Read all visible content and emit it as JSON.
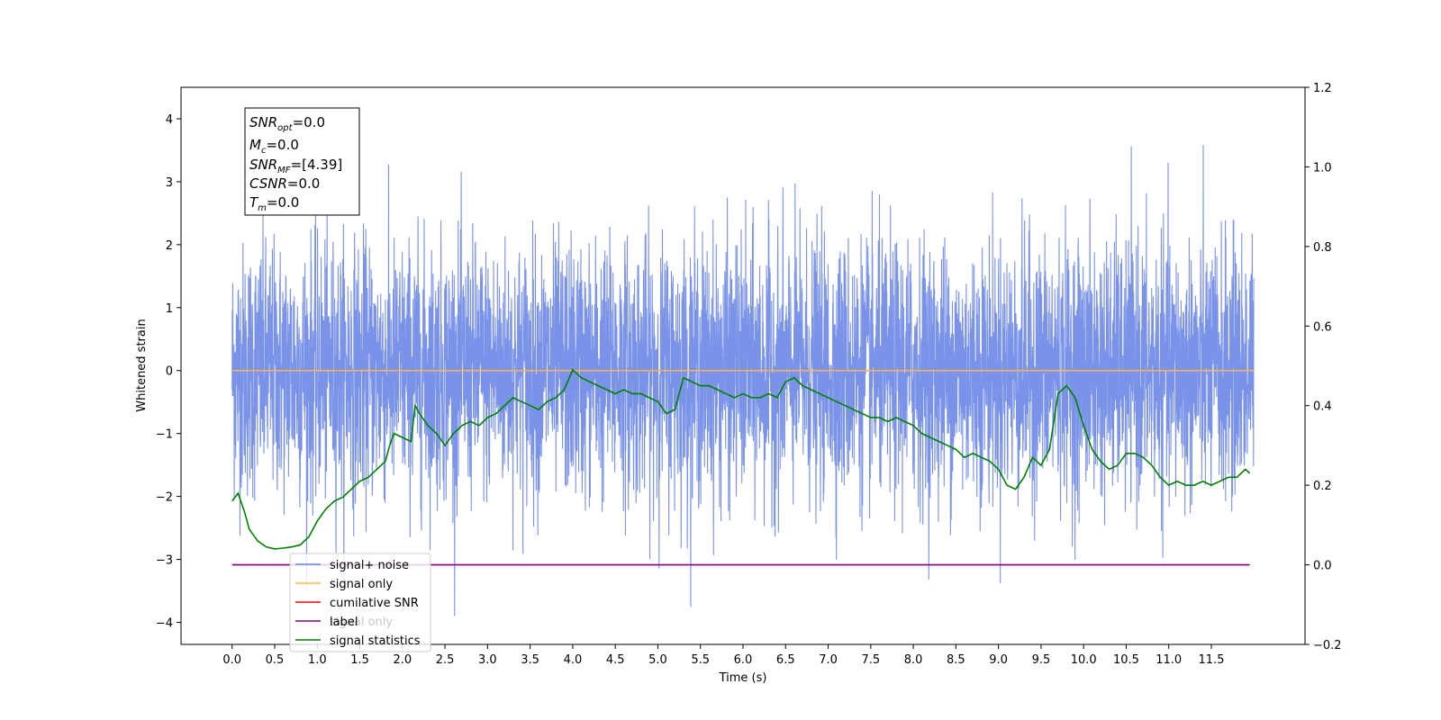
{
  "chart_data": {
    "type": "line",
    "xlabel": "Time (s)",
    "ylabel": "Whitened strain",
    "xlim": [
      -0.6,
      12.6
    ],
    "ylim": [
      -4.35,
      4.5
    ],
    "y2lim": [
      -0.2,
      1.2
    ],
    "x_ticks": [
      0.0,
      0.5,
      1.0,
      1.5,
      2.0,
      2.5,
      3.0,
      3.5,
      4.0,
      4.5,
      5.0,
      5.5,
      6.0,
      6.5,
      7.0,
      7.5,
      8.0,
      8.5,
      9.0,
      9.5,
      10.0,
      10.5,
      11.0,
      11.5
    ],
    "x_tick_labels": [
      "0.0",
      "0.5",
      "1.0",
      "1.5",
      "2.0",
      "2.5",
      "3.0",
      "3.5",
      "4.0",
      "4.5",
      "5.0",
      "5.5",
      "6.0",
      "6.5",
      "7.0",
      "7.5",
      "8.0",
      "8.5",
      "9.0",
      "9.5",
      "10.0",
      "10.5",
      "11.0",
      "11.5"
    ],
    "y_ticks": [
      -4,
      -3,
      -2,
      -1,
      0,
      1,
      2,
      3,
      4
    ],
    "y_tick_labels": [
      "−4",
      "−3",
      "−2",
      "−1",
      "0",
      "1",
      "2",
      "3",
      "4"
    ],
    "y2_ticks": [
      -0.2,
      0.0,
      0.2,
      0.4,
      0.6,
      0.8,
      1.0,
      1.2
    ],
    "y2_tick_labels": [
      "−0.2",
      "0.0",
      "0.2",
      "0.4",
      "0.6",
      "0.8",
      "1.0",
      "1.2"
    ],
    "info_box": [
      {
        "main": "SNR",
        "sub": "opt",
        "rest": "=0.0"
      },
      {
        "main": "M",
        "sub": "c",
        "rest": "=0.0"
      },
      {
        "main": "SNR",
        "sub": "MF",
        "rest": "=[4.39]"
      },
      {
        "main": "CSNR",
        "sub": "",
        "rest": "=0.0"
      },
      {
        "main": "T",
        "sub": "m",
        "rest": "=0.0"
      }
    ],
    "legend": {
      "placement": "lower-left",
      "entries": [
        {
          "label": "signal+ noise",
          "color": "#6b87e5"
        },
        {
          "label": "signal only",
          "color": "#ffb347"
        },
        {
          "label": "cumilative SNR",
          "color": "#ff0000"
        },
        {
          "label": "label",
          "color": "#800080"
        },
        {
          "label": "signal statistics",
          "color": "#008000"
        }
      ],
      "hidden_text": "signal only"
    },
    "series": [
      {
        "name": "signal+ noise",
        "axis": "left",
        "color": "#6b87e5",
        "kind": "noise",
        "t_start": 0.0,
        "t_end": 12.0,
        "samples": 4800,
        "std": 1.0,
        "clip_max": 4.1,
        "clip_min": -3.9
      },
      {
        "name": "signal only",
        "axis": "left",
        "color": "#ffb347",
        "x": [
          0.0,
          12.0
        ],
        "y": [
          0.0,
          0.0
        ]
      },
      {
        "name": "label",
        "axis": "right",
        "color": "#800080",
        "x": [
          0.0,
          11.95
        ],
        "y": [
          0.0,
          0.0
        ]
      },
      {
        "name": "signal statistics",
        "axis": "right",
        "color": "#008000",
        "x": [
          0.0,
          0.07,
          0.15,
          0.2,
          0.3,
          0.4,
          0.5,
          0.6,
          0.7,
          0.8,
          0.9,
          1.0,
          1.1,
          1.2,
          1.3,
          1.4,
          1.5,
          1.6,
          1.7,
          1.8,
          1.85,
          1.9,
          2.0,
          2.1,
          2.15,
          2.2,
          2.3,
          2.4,
          2.5,
          2.6,
          2.7,
          2.8,
          2.9,
          3.0,
          3.1,
          3.2,
          3.3,
          3.4,
          3.5,
          3.6,
          3.7,
          3.8,
          3.9,
          4.0,
          4.1,
          4.2,
          4.3,
          4.4,
          4.5,
          4.6,
          4.7,
          4.8,
          4.9,
          5.0,
          5.1,
          5.2,
          5.3,
          5.4,
          5.5,
          5.6,
          5.7,
          5.8,
          5.9,
          6.0,
          6.1,
          6.2,
          6.3,
          6.4,
          6.5,
          6.6,
          6.7,
          6.8,
          6.9,
          7.0,
          7.1,
          7.2,
          7.3,
          7.4,
          7.5,
          7.6,
          7.7,
          7.8,
          7.9,
          8.0,
          8.1,
          8.2,
          8.3,
          8.4,
          8.5,
          8.6,
          8.7,
          8.8,
          8.9,
          9.0,
          9.1,
          9.2,
          9.3,
          9.4,
          9.5,
          9.6,
          9.7,
          9.8,
          9.9,
          10.0,
          10.1,
          10.2,
          10.3,
          10.4,
          10.5,
          10.6,
          10.7,
          10.8,
          10.9,
          11.0,
          11.1,
          11.2,
          11.3,
          11.4,
          11.5,
          11.6,
          11.7,
          11.8,
          11.9,
          11.95
        ],
        "y": [
          0.16,
          0.18,
          0.13,
          0.09,
          0.06,
          0.045,
          0.04,
          0.042,
          0.045,
          0.05,
          0.07,
          0.11,
          0.14,
          0.16,
          0.17,
          0.19,
          0.21,
          0.22,
          0.24,
          0.26,
          0.3,
          0.33,
          0.32,
          0.31,
          0.4,
          0.38,
          0.35,
          0.33,
          0.3,
          0.33,
          0.35,
          0.36,
          0.35,
          0.37,
          0.38,
          0.4,
          0.42,
          0.41,
          0.4,
          0.39,
          0.41,
          0.42,
          0.44,
          0.49,
          0.47,
          0.46,
          0.45,
          0.44,
          0.43,
          0.44,
          0.43,
          0.43,
          0.42,
          0.41,
          0.38,
          0.39,
          0.47,
          0.46,
          0.45,
          0.45,
          0.44,
          0.43,
          0.42,
          0.43,
          0.42,
          0.42,
          0.43,
          0.42,
          0.46,
          0.47,
          0.45,
          0.44,
          0.43,
          0.42,
          0.41,
          0.4,
          0.39,
          0.38,
          0.37,
          0.37,
          0.36,
          0.37,
          0.36,
          0.35,
          0.33,
          0.32,
          0.31,
          0.3,
          0.29,
          0.27,
          0.28,
          0.27,
          0.26,
          0.24,
          0.2,
          0.19,
          0.22,
          0.27,
          0.25,
          0.29,
          0.43,
          0.45,
          0.42,
          0.35,
          0.29,
          0.26,
          0.24,
          0.25,
          0.28,
          0.28,
          0.27,
          0.25,
          0.22,
          0.2,
          0.21,
          0.2,
          0.2,
          0.21,
          0.2,
          0.21,
          0.22,
          0.22,
          0.24,
          0.23
        ]
      }
    ]
  }
}
